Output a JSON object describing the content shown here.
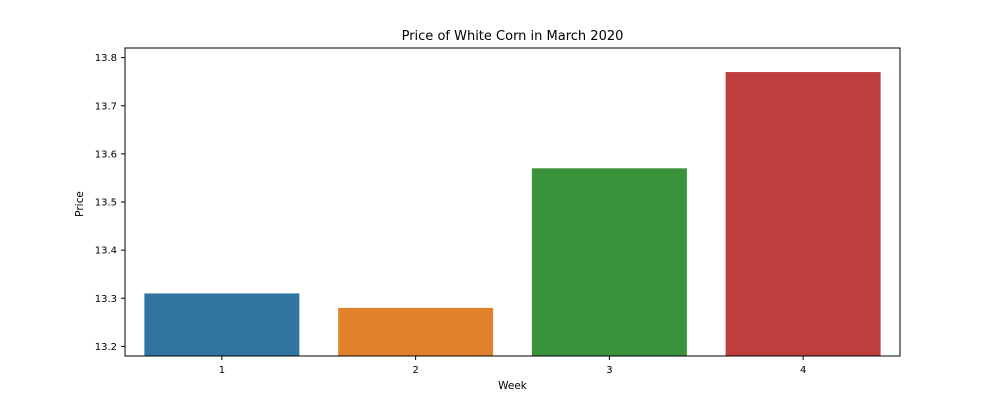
{
  "chart_data": {
    "type": "bar",
    "title": "Price of White Corn in March 2020",
    "xlabel": "Week",
    "ylabel": "Price",
    "categories": [
      "1",
      "2",
      "3",
      "4"
    ],
    "values": [
      13.31,
      13.28,
      13.57,
      13.77
    ],
    "colors": [
      "#3274a1",
      "#e1812c",
      "#3a923a",
      "#c03d3e"
    ],
    "ylim": [
      13.18,
      13.82
    ],
    "yticks": [
      13.2,
      13.3,
      13.4,
      13.5,
      13.6,
      13.7,
      13.8
    ],
    "ytick_labels": [
      "13.2",
      "13.3",
      "13.4",
      "13.5",
      "13.6",
      "13.7",
      "13.8"
    ],
    "grid": false,
    "legend": "none"
  }
}
